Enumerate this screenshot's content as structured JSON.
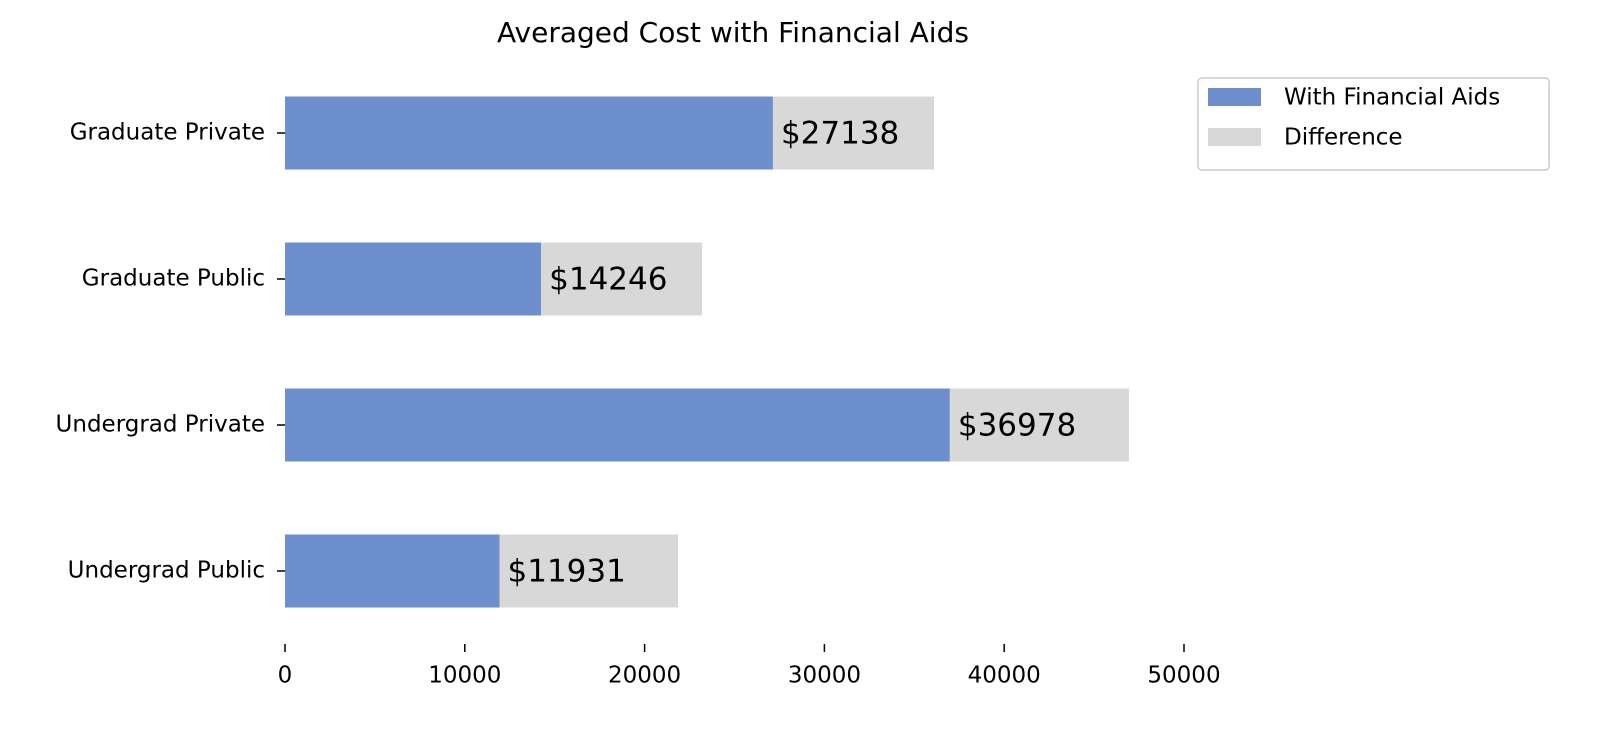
{
  "chart_data": {
    "type": "stacked-barh",
    "title": "Averaged Cost with Financial Aids",
    "categories": [
      "Graduate Private",
      "Graduate Public",
      "Undergrad Private",
      "Undergrad Public"
    ],
    "series": [
      {
        "name": "With Financial Aids",
        "color": "#6d8fcd",
        "values": [
          27138,
          14246,
          36978,
          11931
        ],
        "value_labels": [
          "$27138",
          "$14246",
          "$36978",
          "$11931"
        ]
      },
      {
        "name": "Difference",
        "color": "#d8d8d8",
        "values": [
          8960,
          8950,
          9960,
          9930
        ]
      }
    ],
    "xlim": [
      0,
      50000
    ],
    "xticks": [
      0,
      10000,
      20000,
      30000,
      40000,
      50000
    ],
    "legend": "upper-right"
  }
}
